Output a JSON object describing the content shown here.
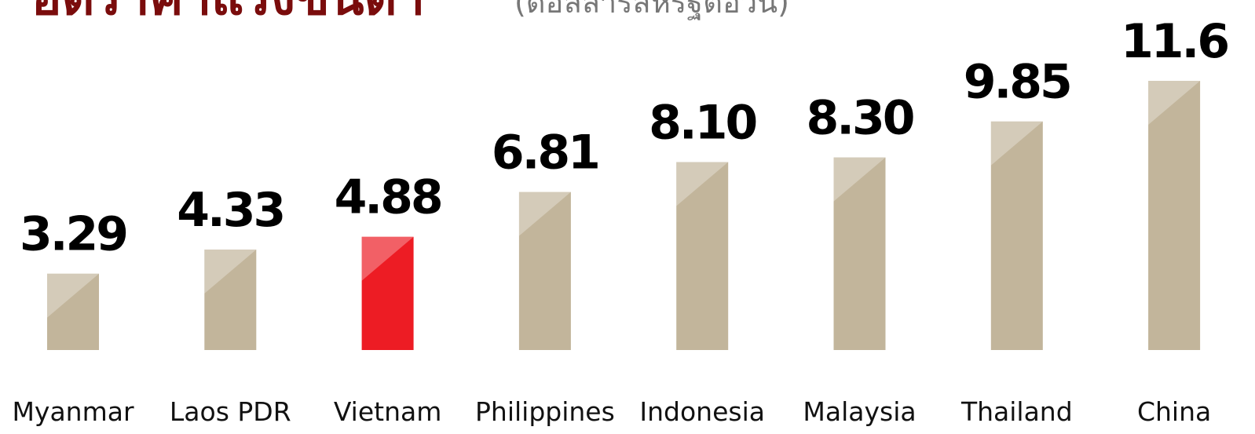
{
  "chart_data": {
    "type": "bar",
    "title": "อัตราค่าแรงขั้นต่ำ",
    "subtitle": "(ดอลลาร์สหรัฐต่อวัน)",
    "categories": [
      "Myanmar",
      "Laos PDR",
      "Vietnam",
      "Philippines",
      "Indonesia",
      "Malaysia",
      "Thailand",
      "China"
    ],
    "values": [
      3.29,
      4.33,
      4.88,
      6.81,
      8.1,
      8.3,
      9.85,
      11.6
    ],
    "value_labels": [
      "3.29",
      "4.33",
      "4.88",
      "6.81",
      "8.10",
      "8.30",
      "9.85",
      "11.6"
    ],
    "colors": [
      "#c2b59b",
      "#c2b59b",
      "#ed1c24",
      "#c2b59b",
      "#c2b59b",
      "#c2b59b",
      "#c2b59b",
      "#c2b59b"
    ]
  }
}
